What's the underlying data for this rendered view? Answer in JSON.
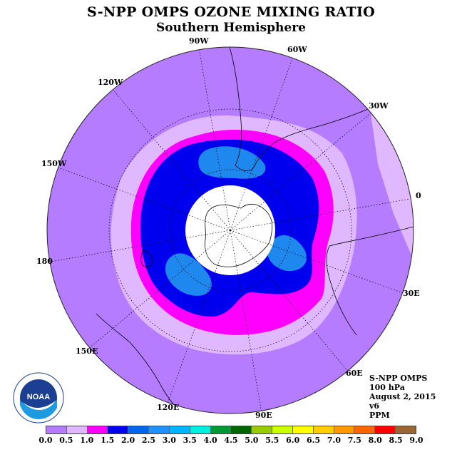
{
  "title": "S-NPP OMPS OZONE MIXING RATIO",
  "subtitle": "Southern Hemisphere",
  "longitude_labels": {
    "w90": "90W",
    "w60": "60W",
    "w30": "30W",
    "e0": "0",
    "w120": "120W",
    "w150": "150W",
    "e180": "180",
    "e30": "30E",
    "e60": "60E",
    "e90": "90E",
    "e120": "120E",
    "e150": "150E"
  },
  "info": {
    "instrument": "S-NPP OMPS",
    "level": "100 hPa",
    "date": "August 2, 2015",
    "version": "v6",
    "units": "PPM"
  },
  "logo": {
    "text": "NOAA"
  },
  "colorbar": {
    "ticks": [
      "0.0",
      "0.5",
      "1.0",
      "1.5",
      "2.0",
      "2.5",
      "3.0",
      "3.5",
      "4.0",
      "4.5",
      "5.0",
      "5.5",
      "6.0",
      "6.5",
      "7.0",
      "7.5",
      "8.0",
      "8.5",
      "9.0"
    ],
    "colors": [
      "#b57cff",
      "#e0b8ff",
      "#ff00ff",
      "#0000ee",
      "#0066ee",
      "#1e90ff",
      "#00b4ff",
      "#00eedd",
      "#009933",
      "#006600",
      "#99cc00",
      "#ccff00",
      "#ffff00",
      "#ffcc00",
      "#ff9900",
      "#ff6600",
      "#ff0000",
      "#996633"
    ]
  },
  "map_colors": {
    "background": "#b57cff",
    "band_0_5": "#e0b8ff",
    "band_1_0": "#ff00ff",
    "band_1_5": "#0000ee",
    "band_2_0": "#0080ee",
    "band_2_5": "#1e90ff",
    "polar_cap": "#ffffff"
  }
}
